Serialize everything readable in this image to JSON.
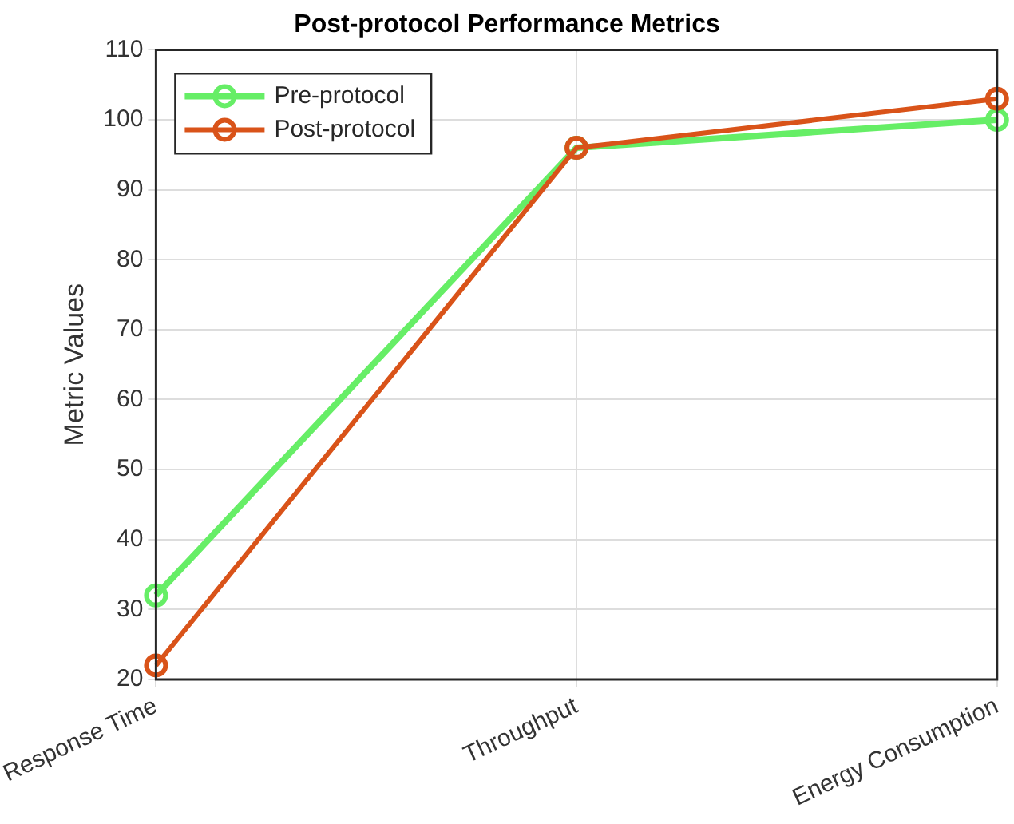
{
  "chart_data": {
    "type": "line",
    "title": "Post-protocol Performance Metrics",
    "ylabel": "Metric Values",
    "categories": [
      "Response Time",
      "Throughput",
      "Energy Consumption"
    ],
    "series": [
      {
        "name": "Pre-protocol",
        "color": "#66ee66",
        "values": [
          32,
          96,
          100
        ]
      },
      {
        "name": "Post-protocol",
        "color": "#d95319",
        "values": [
          22,
          96,
          103
        ]
      }
    ],
    "ylim": [
      20,
      110
    ],
    "yticks": [
      20,
      30,
      40,
      50,
      60,
      70,
      80,
      90,
      100,
      110
    ],
    "grid": true,
    "legend": "top left",
    "marker": "circle",
    "line_style": "solid"
  }
}
